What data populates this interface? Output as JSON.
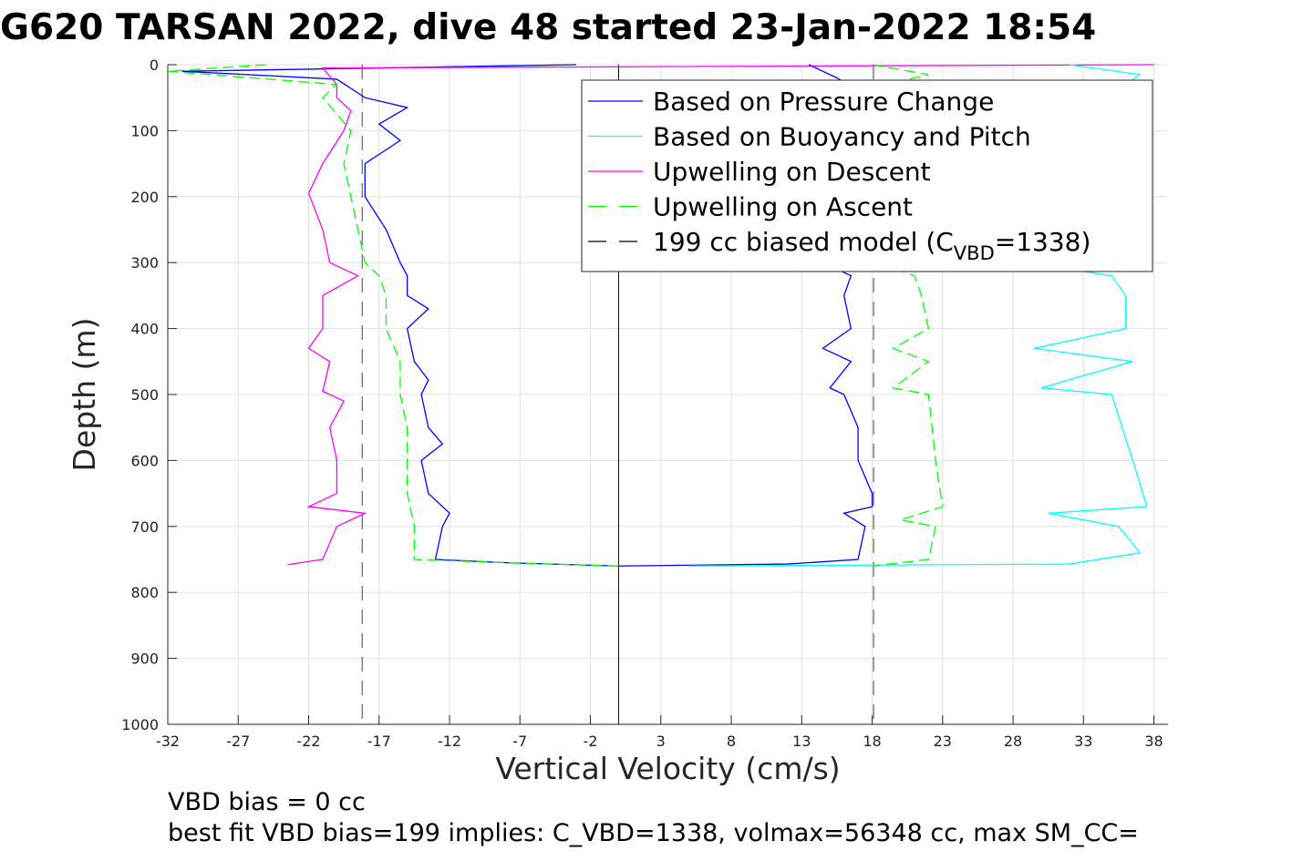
{
  "chart_data": {
    "type": "line",
    "title": "G620 TARSAN 2022, dive 48 started 23-Jan-2022 18:54",
    "xlabel": "Vertical Velocity (cm/s)",
    "ylabel": "Depth (m)",
    "xlim": [
      -32,
      39
    ],
    "ylim": [
      0,
      1000
    ],
    "y_reversed": true,
    "grid": true,
    "xticks": [
      -32,
      -27,
      -22,
      -17,
      -12,
      -7,
      -2,
      3,
      8,
      13,
      18,
      23,
      28,
      33,
      38
    ],
    "yticks": [
      0,
      100,
      200,
      300,
      400,
      500,
      600,
      700,
      800,
      900,
      1000
    ],
    "legend_placement": "top-right",
    "legend": [
      {
        "label": "Based on Pressure Change",
        "color": "#0000ff",
        "style": "solid"
      },
      {
        "label": "Based on Buoyancy and Pitch",
        "color": "#00ffff",
        "style": "solid"
      },
      {
        "label": "Upwelling on Descent",
        "color": "#ff00ff",
        "style": "solid"
      },
      {
        "label": "Upwelling on Ascent",
        "color": "#00ff00",
        "style": "dashed"
      },
      {
        "label": "199 cc biased model (C",
        "sub": "VBD",
        "tail": "=1338)",
        "color": "#000000",
        "style": "dashed"
      }
    ],
    "zero_line": 0,
    "model_lines": [
      -18.2,
      18.1
    ],
    "series": [
      {
        "name": "Pressure change (descent)",
        "color": "#0000ff",
        "dash": false,
        "points": [
          [
            -3,
            0
          ],
          [
            -31,
            10
          ],
          [
            -20,
            22
          ],
          [
            -18,
            50
          ],
          [
            -15,
            65
          ],
          [
            -17,
            90
          ],
          [
            -15.5,
            115
          ],
          [
            -18,
            150
          ],
          [
            -18,
            200
          ],
          [
            -16.5,
            250
          ],
          [
            -15.5,
            300
          ],
          [
            -15,
            320
          ],
          [
            -15,
            350
          ],
          [
            -13.5,
            370
          ],
          [
            -15,
            400
          ],
          [
            -14.5,
            450
          ],
          [
            -13.5,
            478
          ],
          [
            -14,
            500
          ],
          [
            -13.5,
            550
          ],
          [
            -12.5,
            575
          ],
          [
            -14,
            600
          ],
          [
            -13.5,
            650
          ],
          [
            -12,
            680
          ],
          [
            -12.5,
            700
          ],
          [
            -13,
            750
          ],
          [
            -8,
            755
          ],
          [
            0,
            760
          ]
        ]
      },
      {
        "name": "Upwelling on Descent",
        "color": "#ff00ff",
        "dash": false,
        "points": [
          [
            38,
            0
          ],
          [
            -21,
            5
          ],
          [
            -20,
            30
          ],
          [
            -20,
            50
          ],
          [
            -19,
            70
          ],
          [
            -19.5,
            100
          ],
          [
            -21,
            150
          ],
          [
            -22,
            195
          ],
          [
            -21,
            250
          ],
          [
            -20.5,
            300
          ],
          [
            -18.5,
            320
          ],
          [
            -21,
            350
          ],
          [
            -21,
            400
          ],
          [
            -22,
            430
          ],
          [
            -20.5,
            450
          ],
          [
            -21,
            495
          ],
          [
            -19.5,
            510
          ],
          [
            -20.5,
            550
          ],
          [
            -20,
            600
          ],
          [
            -20,
            650
          ],
          [
            -22,
            670
          ],
          [
            -18,
            680
          ],
          [
            -20,
            700
          ],
          [
            -21,
            750
          ],
          [
            -23.5,
            758
          ]
        ]
      },
      {
        "name": "Upwelling on Ascent (descent side)",
        "color": "#00ff00",
        "dash": true,
        "points": [
          [
            -25,
            0
          ],
          [
            -32,
            10
          ],
          [
            -20,
            30
          ],
          [
            -21,
            50
          ],
          [
            -19,
            100
          ],
          [
            -19.5,
            150
          ],
          [
            -19,
            200
          ],
          [
            -18.5,
            250
          ],
          [
            -18,
            300
          ],
          [
            -17,
            320
          ],
          [
            -16.5,
            350
          ],
          [
            -16.5,
            400
          ],
          [
            -15.5,
            450
          ],
          [
            -15.5,
            500
          ],
          [
            -15,
            550
          ],
          [
            -15,
            600
          ],
          [
            -15,
            650
          ],
          [
            -14.5,
            700
          ],
          [
            -14.5,
            750
          ],
          [
            -8,
            755
          ],
          [
            0,
            760
          ]
        ]
      },
      {
        "name": "Pressure change (ascent)",
        "color": "#0000ff",
        "dash": false,
        "points": [
          [
            13.5,
            0
          ],
          [
            15.5,
            20
          ],
          [
            17,
            40
          ]
        ]
      },
      {
        "name": "Pressure change (ascent) deep",
        "color": "#0000ff",
        "dash": false,
        "points": [
          [
            14.5,
            300
          ],
          [
            16.5,
            320
          ],
          [
            16,
            350
          ],
          [
            16.5,
            400
          ],
          [
            14.5,
            430
          ],
          [
            16.5,
            450
          ],
          [
            15,
            490
          ],
          [
            16,
            500
          ],
          [
            17,
            550
          ],
          [
            17,
            600
          ],
          [
            18,
            650
          ],
          [
            18,
            670
          ],
          [
            16,
            680
          ],
          [
            17.5,
            700
          ],
          [
            17,
            750
          ],
          [
            12,
            757
          ],
          [
            0,
            760
          ]
        ]
      },
      {
        "name": "Buoyancy and pitch (ascent) top",
        "color": "#00ffff",
        "dash": false,
        "points": [
          [
            32,
            0
          ],
          [
            37,
            15
          ],
          [
            36,
            30
          ]
        ]
      },
      {
        "name": "Buoyancy and pitch (ascent)",
        "color": "#00ffff",
        "dash": false,
        "points": [
          [
            37.5,
            300
          ],
          [
            30.5,
            305
          ],
          [
            35,
            320
          ],
          [
            36,
            350
          ],
          [
            36,
            400
          ],
          [
            29.5,
            430
          ],
          [
            36.5,
            450
          ],
          [
            30,
            490
          ],
          [
            35,
            500
          ],
          [
            36.5,
            600
          ],
          [
            37.5,
            670
          ],
          [
            30.5,
            680
          ],
          [
            35.5,
            700
          ],
          [
            37,
            740
          ],
          [
            32,
            757
          ],
          [
            5,
            760
          ]
        ]
      },
      {
        "name": "Upwelling on Ascent top",
        "color": "#00ff00",
        "dash": true,
        "points": [
          [
            18,
            0
          ],
          [
            22,
            15
          ],
          [
            20,
            25
          ]
        ]
      },
      {
        "name": "Upwelling on Ascent deep",
        "color": "#00ff00",
        "dash": true,
        "points": [
          [
            18.5,
            300
          ],
          [
            21,
            320
          ],
          [
            21.5,
            350
          ],
          [
            22,
            400
          ],
          [
            19.5,
            430
          ],
          [
            22,
            450
          ],
          [
            19.5,
            490
          ],
          [
            22,
            500
          ],
          [
            22.5,
            600
          ],
          [
            23,
            670
          ],
          [
            20,
            690
          ],
          [
            22.5,
            700
          ],
          [
            22,
            750
          ],
          [
            18,
            760
          ]
        ]
      }
    ]
  },
  "notes": {
    "bias": "VBD bias = 0 cc",
    "best_fit": "best fit VBD bias=199 implies: C_VBD=1338, volmax=56348 cc, max SM_CC="
  }
}
